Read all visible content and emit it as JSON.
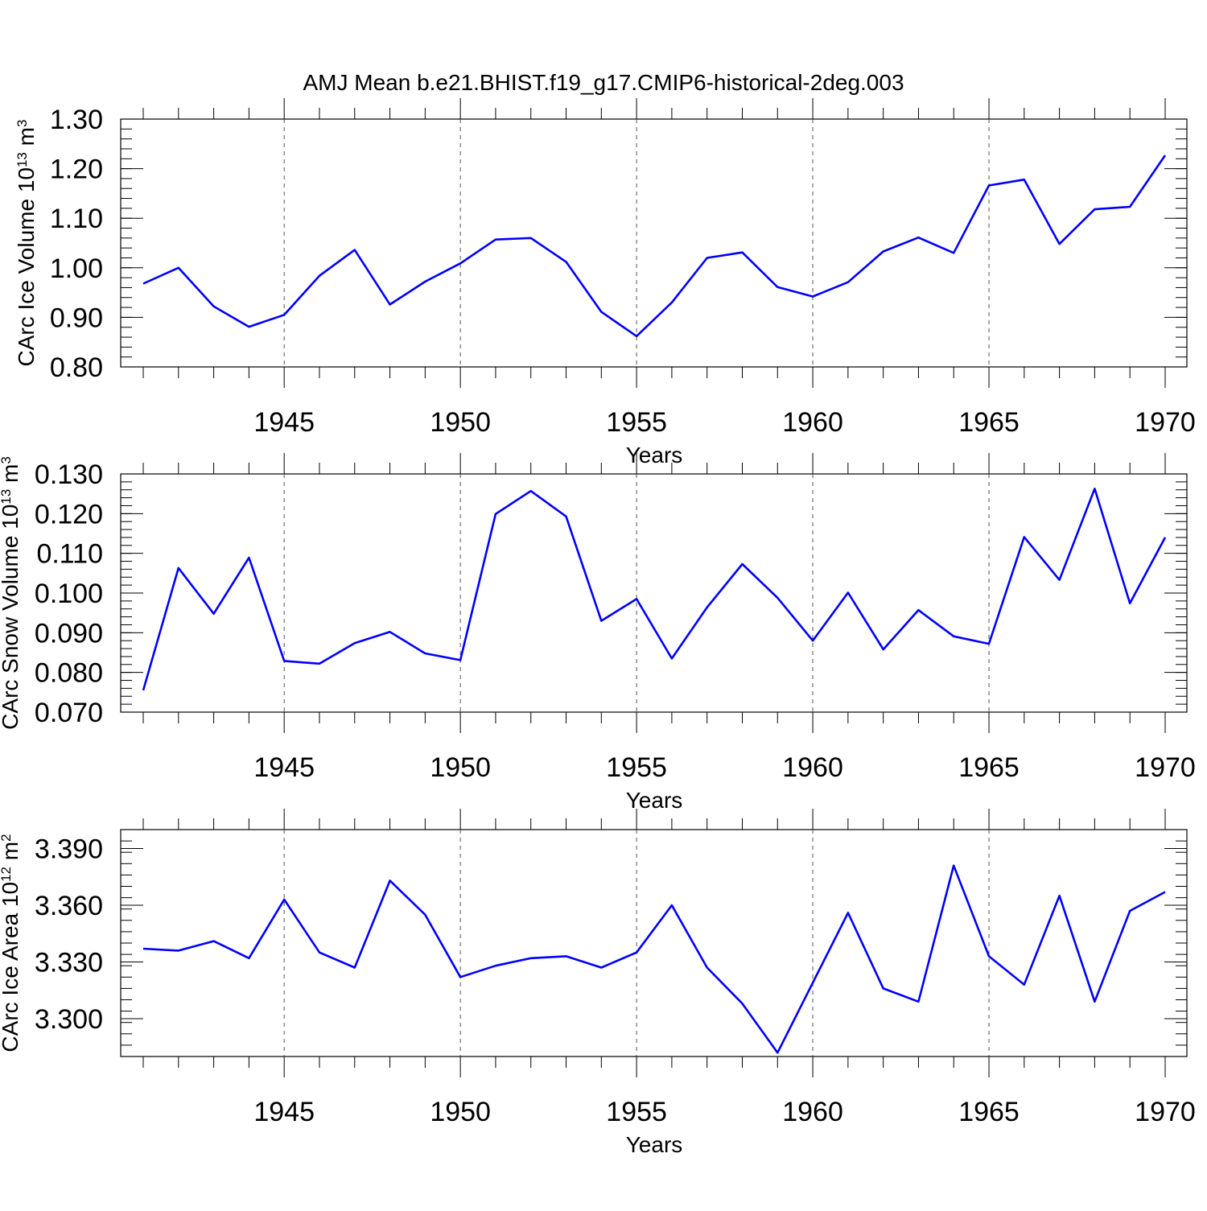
{
  "figure": {
    "title": "AMJ Mean b.e21.BHIST.f19_g17.CMIP6-historical-2deg.003"
  },
  "chart_data": [
    {
      "type": "line",
      "title": "",
      "xlabel": "Years",
      "ylabel": "CArc Ice Volume 10",
      "ylabel_exp": "13",
      "ylabel_unit": " m",
      "ylabel_unit_exp": "3",
      "xlim": [
        1941,
        1970
      ],
      "ylim": [
        0.8,
        1.3
      ],
      "xticks": [
        1945,
        1950,
        1955,
        1960,
        1965,
        1970
      ],
      "yticks": [
        "0.80",
        "0.90",
        "1.00",
        "1.10",
        "1.20",
        "1.30"
      ],
      "yticks_values": [
        0.8,
        0.9,
        1.0,
        1.1,
        1.2,
        1.3
      ],
      "grid": "vertical dashed at major x ticks",
      "line_color": "#0000ff",
      "series": [
        {
          "x": [
            1941,
            1942,
            1943,
            1944,
            1945,
            1946,
            1947,
            1948,
            1949,
            1950,
            1951,
            1952,
            1953,
            1954,
            1955,
            1956,
            1957,
            1958,
            1959,
            1960,
            1961,
            1962,
            1963,
            1964,
            1965,
            1966,
            1967,
            1968,
            1969,
            1970
          ],
          "values": [
            0.968,
            1.0,
            0.922,
            0.881,
            0.905,
            0.984,
            1.036,
            0.926,
            0.972,
            1.009,
            1.057,
            1.06,
            1.012,
            0.911,
            0.862,
            0.93,
            1.02,
            1.031,
            0.961,
            0.942,
            0.971,
            1.033,
            1.061,
            1.03,
            1.166,
            1.178,
            1.048,
            1.118,
            1.123,
            1.227
          ]
        }
      ]
    },
    {
      "type": "line",
      "title": "",
      "xlabel": "Years",
      "ylabel": "CArc Snow Volume 10",
      "ylabel_exp": "13",
      "ylabel_unit": " m",
      "ylabel_unit_exp": "3",
      "xlim": [
        1941,
        1970
      ],
      "ylim": [
        0.07,
        0.13
      ],
      "xticks": [
        1945,
        1950,
        1955,
        1960,
        1965,
        1970
      ],
      "yticks": [
        "0.070",
        "0.080",
        "0.090",
        "0.100",
        "0.110",
        "0.120",
        "0.130"
      ],
      "yticks_values": [
        0.07,
        0.08,
        0.09,
        0.1,
        0.11,
        0.12,
        0.13
      ],
      "grid": "vertical dashed at major x ticks",
      "line_color": "#0000ff",
      "series": [
        {
          "x": [
            1941,
            1942,
            1943,
            1944,
            1945,
            1946,
            1947,
            1948,
            1949,
            1950,
            1951,
            1952,
            1953,
            1954,
            1955,
            1956,
            1957,
            1958,
            1959,
            1960,
            1961,
            1962,
            1963,
            1964,
            1965,
            1966,
            1967,
            1968,
            1969,
            1970
          ],
          "values": [
            0.0755,
            0.1063,
            0.0948,
            0.1089,
            0.0829,
            0.0822,
            0.0874,
            0.0902,
            0.0848,
            0.0831,
            0.1199,
            0.1257,
            0.1193,
            0.093,
            0.0985,
            0.0835,
            0.0964,
            0.1073,
            0.0988,
            0.088,
            0.1001,
            0.0858,
            0.0957,
            0.0891,
            0.0872,
            0.1141,
            0.1033,
            0.1263,
            0.0974,
            0.114
          ]
        }
      ]
    },
    {
      "type": "line",
      "title": "",
      "xlabel": "Years",
      "ylabel": "CArc Ice Area 10",
      "ylabel_exp": "12",
      "ylabel_unit": " m",
      "ylabel_unit_exp": "2",
      "xlim": [
        1941,
        1970
      ],
      "ylim": [
        3.28,
        3.4
      ],
      "xticks": [
        1945,
        1950,
        1955,
        1960,
        1965,
        1970
      ],
      "yticks": [
        "3.300",
        "3.330",
        "3.360",
        "3.390"
      ],
      "yticks_values": [
        3.3,
        3.33,
        3.36,
        3.39
      ],
      "grid": "vertical dashed at major x ticks",
      "line_color": "#0000ff",
      "series": [
        {
          "x": [
            1941,
            1942,
            1943,
            1944,
            1945,
            1946,
            1947,
            1948,
            1949,
            1950,
            1951,
            1952,
            1953,
            1954,
            1955,
            1956,
            1957,
            1958,
            1959,
            1960,
            1961,
            1962,
            1963,
            1964,
            1965,
            1966,
            1967,
            1968,
            1969,
            1970
          ],
          "values": [
            3.337,
            3.336,
            3.341,
            3.332,
            3.363,
            3.335,
            3.327,
            3.373,
            3.355,
            3.322,
            3.328,
            3.332,
            3.333,
            3.327,
            3.335,
            3.36,
            3.327,
            3.308,
            3.282,
            3.319,
            3.356,
            3.316,
            3.309,
            3.381,
            3.333,
            3.318,
            3.365,
            3.309,
            3.357,
            3.367
          ]
        }
      ]
    }
  ]
}
